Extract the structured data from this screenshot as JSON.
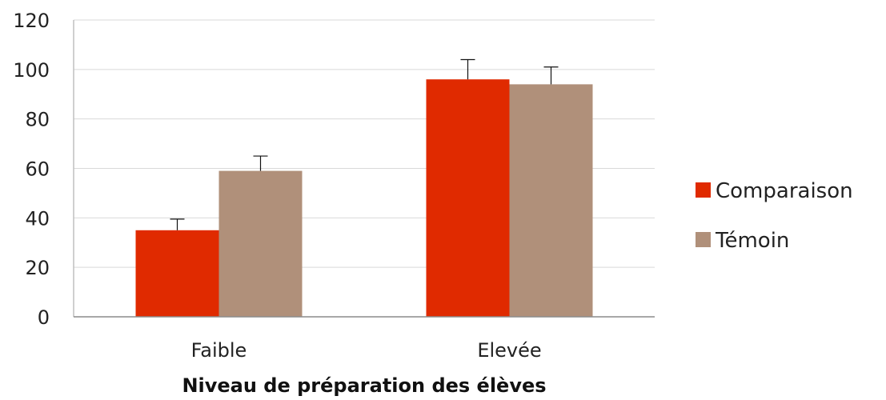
{
  "chart_data": {
    "type": "bar",
    "title": "",
    "xlabel": "Niveau de préparation des élèves",
    "ylabel": "",
    "ylim": [
      0,
      120
    ],
    "yticks": [
      0,
      20,
      40,
      60,
      80,
      100,
      120
    ],
    "categories": [
      "Faible",
      "Elevée"
    ],
    "series": [
      {
        "name": "Comparaison",
        "color": "#e02a00",
        "values": [
          35,
          96
        ],
        "errors": [
          4.5,
          8
        ]
      },
      {
        "name": "Témoin",
        "color": "#b0907a",
        "values": [
          59,
          94
        ],
        "errors": [
          6,
          7
        ]
      }
    ],
    "grid": true,
    "legend_position": "right"
  }
}
